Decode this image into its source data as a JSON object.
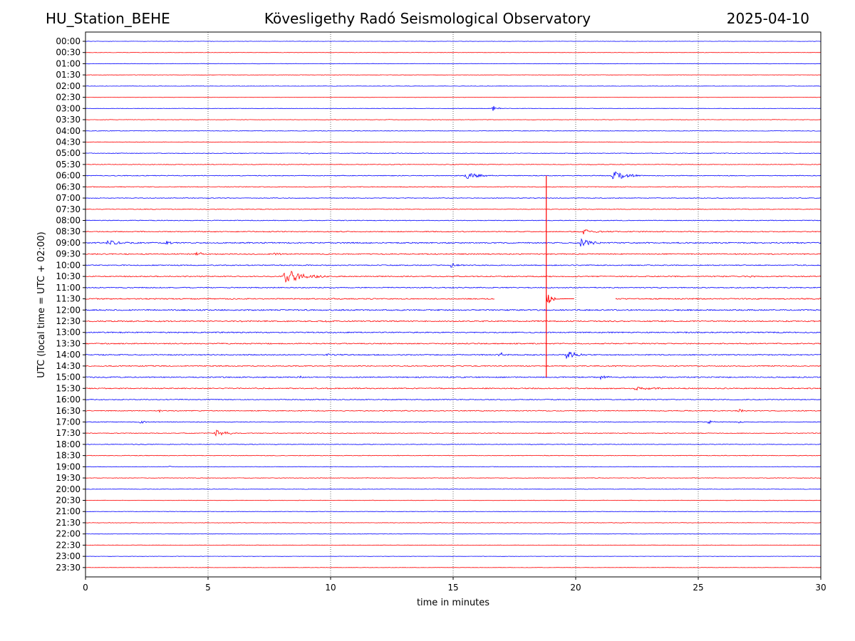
{
  "header": {
    "station": "HU_Station_BEHE",
    "title": "Kövesligethy Radó Seismological Observatory",
    "date": "2025-04-10"
  },
  "chart_data": {
    "type": "line",
    "title": "Kövesligethy Radó Seismological Observatory",
    "xlabel": "time in minutes",
    "ylabel": "UTC (local time = UTC + 02:00)",
    "xlim": [
      0,
      30
    ],
    "xticks": [
      "0",
      "5",
      "10",
      "15",
      "20",
      "25",
      "30"
    ],
    "grid": "vertical dotted lines at each x tick",
    "trace_colors": [
      "#0000ff",
      "#ff0000"
    ],
    "rows": [
      "00:00",
      "00:30",
      "01:00",
      "01:30",
      "02:00",
      "02:30",
      "03:00",
      "03:30",
      "04:00",
      "04:30",
      "05:00",
      "05:30",
      "06:00",
      "06:30",
      "07:00",
      "07:30",
      "08:00",
      "08:30",
      "09:00",
      "09:30",
      "10:00",
      "10:30",
      "11:00",
      "11:30",
      "12:00",
      "12:30",
      "13:00",
      "13:30",
      "14:00",
      "14:30",
      "15:00",
      "15:30",
      "16:00",
      "16:30",
      "17:00",
      "17:30",
      "18:00",
      "18:30",
      "19:00",
      "19:30",
      "20:00",
      "20:30",
      "21:00",
      "21:30",
      "22:00",
      "22:30",
      "23:00",
      "23:30"
    ],
    "noise": [
      0.4,
      0.5,
      0.6,
      0.5,
      0.5,
      0.5,
      0.6,
      0.6,
      0.7,
      0.7,
      0.8,
      0.8,
      1.0,
      1.0,
      0.9,
      0.9,
      1.0,
      1.2,
      1.6,
      1.4,
      1.3,
      1.4,
      1.3,
      1.5,
      1.7,
      1.6,
      1.5,
      1.4,
      1.4,
      1.3,
      1.5,
      1.4,
      1.2,
      1.1,
      1.0,
      0.9,
      0.8,
      0.8,
      0.7,
      0.7,
      0.6,
      0.6,
      0.6,
      0.6,
      0.5,
      0.5,
      0.4,
      0.4
    ],
    "events": [
      {
        "row": "03:00",
        "t": 16.6,
        "amp": 6,
        "dur": 0.15
      },
      {
        "row": "05:00",
        "t": 9.1,
        "amp": 2,
        "dur": 0.1
      },
      {
        "row": "06:00",
        "t": 15.5,
        "amp": 7,
        "dur": 0.4
      },
      {
        "row": "06:00",
        "t": 21.5,
        "amp": 8,
        "dur": 0.5
      },
      {
        "row": "08:30",
        "t": 20.3,
        "amp": 4,
        "dur": 0.4
      },
      {
        "row": "09:00",
        "t": 0.9,
        "amp": 4,
        "dur": 0.5
      },
      {
        "row": "09:00",
        "t": 3.3,
        "amp": 3,
        "dur": 0.2
      },
      {
        "row": "09:00",
        "t": 20.2,
        "amp": 6,
        "dur": 0.5
      },
      {
        "row": "09:30",
        "t": 4.5,
        "amp": 3,
        "dur": 0.3
      },
      {
        "row": "09:30",
        "t": 7.7,
        "amp": 3,
        "dur": 0.2
      },
      {
        "row": "09:30",
        "t": 25.5,
        "amp": 2,
        "dur": 0.1
      },
      {
        "row": "10:00",
        "t": 14.9,
        "amp": 3,
        "dur": 0.2
      },
      {
        "row": "10:30",
        "t": 8.1,
        "amp": 12,
        "dur": 0.6
      },
      {
        "row": "10:30",
        "t": 9.4,
        "amp": 3,
        "dur": 0.2
      },
      {
        "row": "10:30",
        "t": 27.1,
        "amp": 2,
        "dur": 0.1
      },
      {
        "row": "12:00",
        "t": 30.0,
        "amp": 3,
        "dur": 0.1
      },
      {
        "row": "12:30",
        "t": 9.8,
        "amp": 4,
        "dur": 0.1
      },
      {
        "row": "13:00",
        "t": 24.5,
        "amp": 3,
        "dur": 0.1
      },
      {
        "row": "14:00",
        "t": 16.9,
        "amp": 6,
        "dur": 0.15
      },
      {
        "row": "14:00",
        "t": 19.6,
        "amp": 8,
        "dur": 0.3
      },
      {
        "row": "14:00",
        "t": 9.8,
        "amp": 2,
        "dur": 0.3
      },
      {
        "row": "14:30",
        "t": 21.6,
        "amp": 2,
        "dur": 0.1
      },
      {
        "row": "15:00",
        "t": 8.7,
        "amp": 3,
        "dur": 0.1
      },
      {
        "row": "15:00",
        "t": 21.0,
        "amp": 3,
        "dur": 0.4
      },
      {
        "row": "15:30",
        "t": 22.4,
        "amp": 3,
        "dur": 0.6
      },
      {
        "row": "16:30",
        "t": 3.0,
        "amp": 3,
        "dur": 0.1
      },
      {
        "row": "16:30",
        "t": 26.6,
        "amp": 5,
        "dur": 0.15
      },
      {
        "row": "17:00",
        "t": 2.2,
        "amp": 2,
        "dur": 0.3
      },
      {
        "row": "17:00",
        "t": 25.4,
        "amp": 3,
        "dur": 0.2
      },
      {
        "row": "17:00",
        "t": 26.6,
        "amp": 2,
        "dur": 0.2
      },
      {
        "row": "17:30",
        "t": 5.3,
        "amp": 5,
        "dur": 0.4
      },
      {
        "row": "19:00",
        "t": 3.4,
        "amp": 2,
        "dur": 0.1
      }
    ],
    "big_event": {
      "row": "11:30",
      "t": 18.8,
      "span_rows": [
        "06:00",
        "15:00"
      ]
    },
    "gap": {
      "row": "11:30",
      "from": 16.7,
      "to": 21.6
    }
  }
}
